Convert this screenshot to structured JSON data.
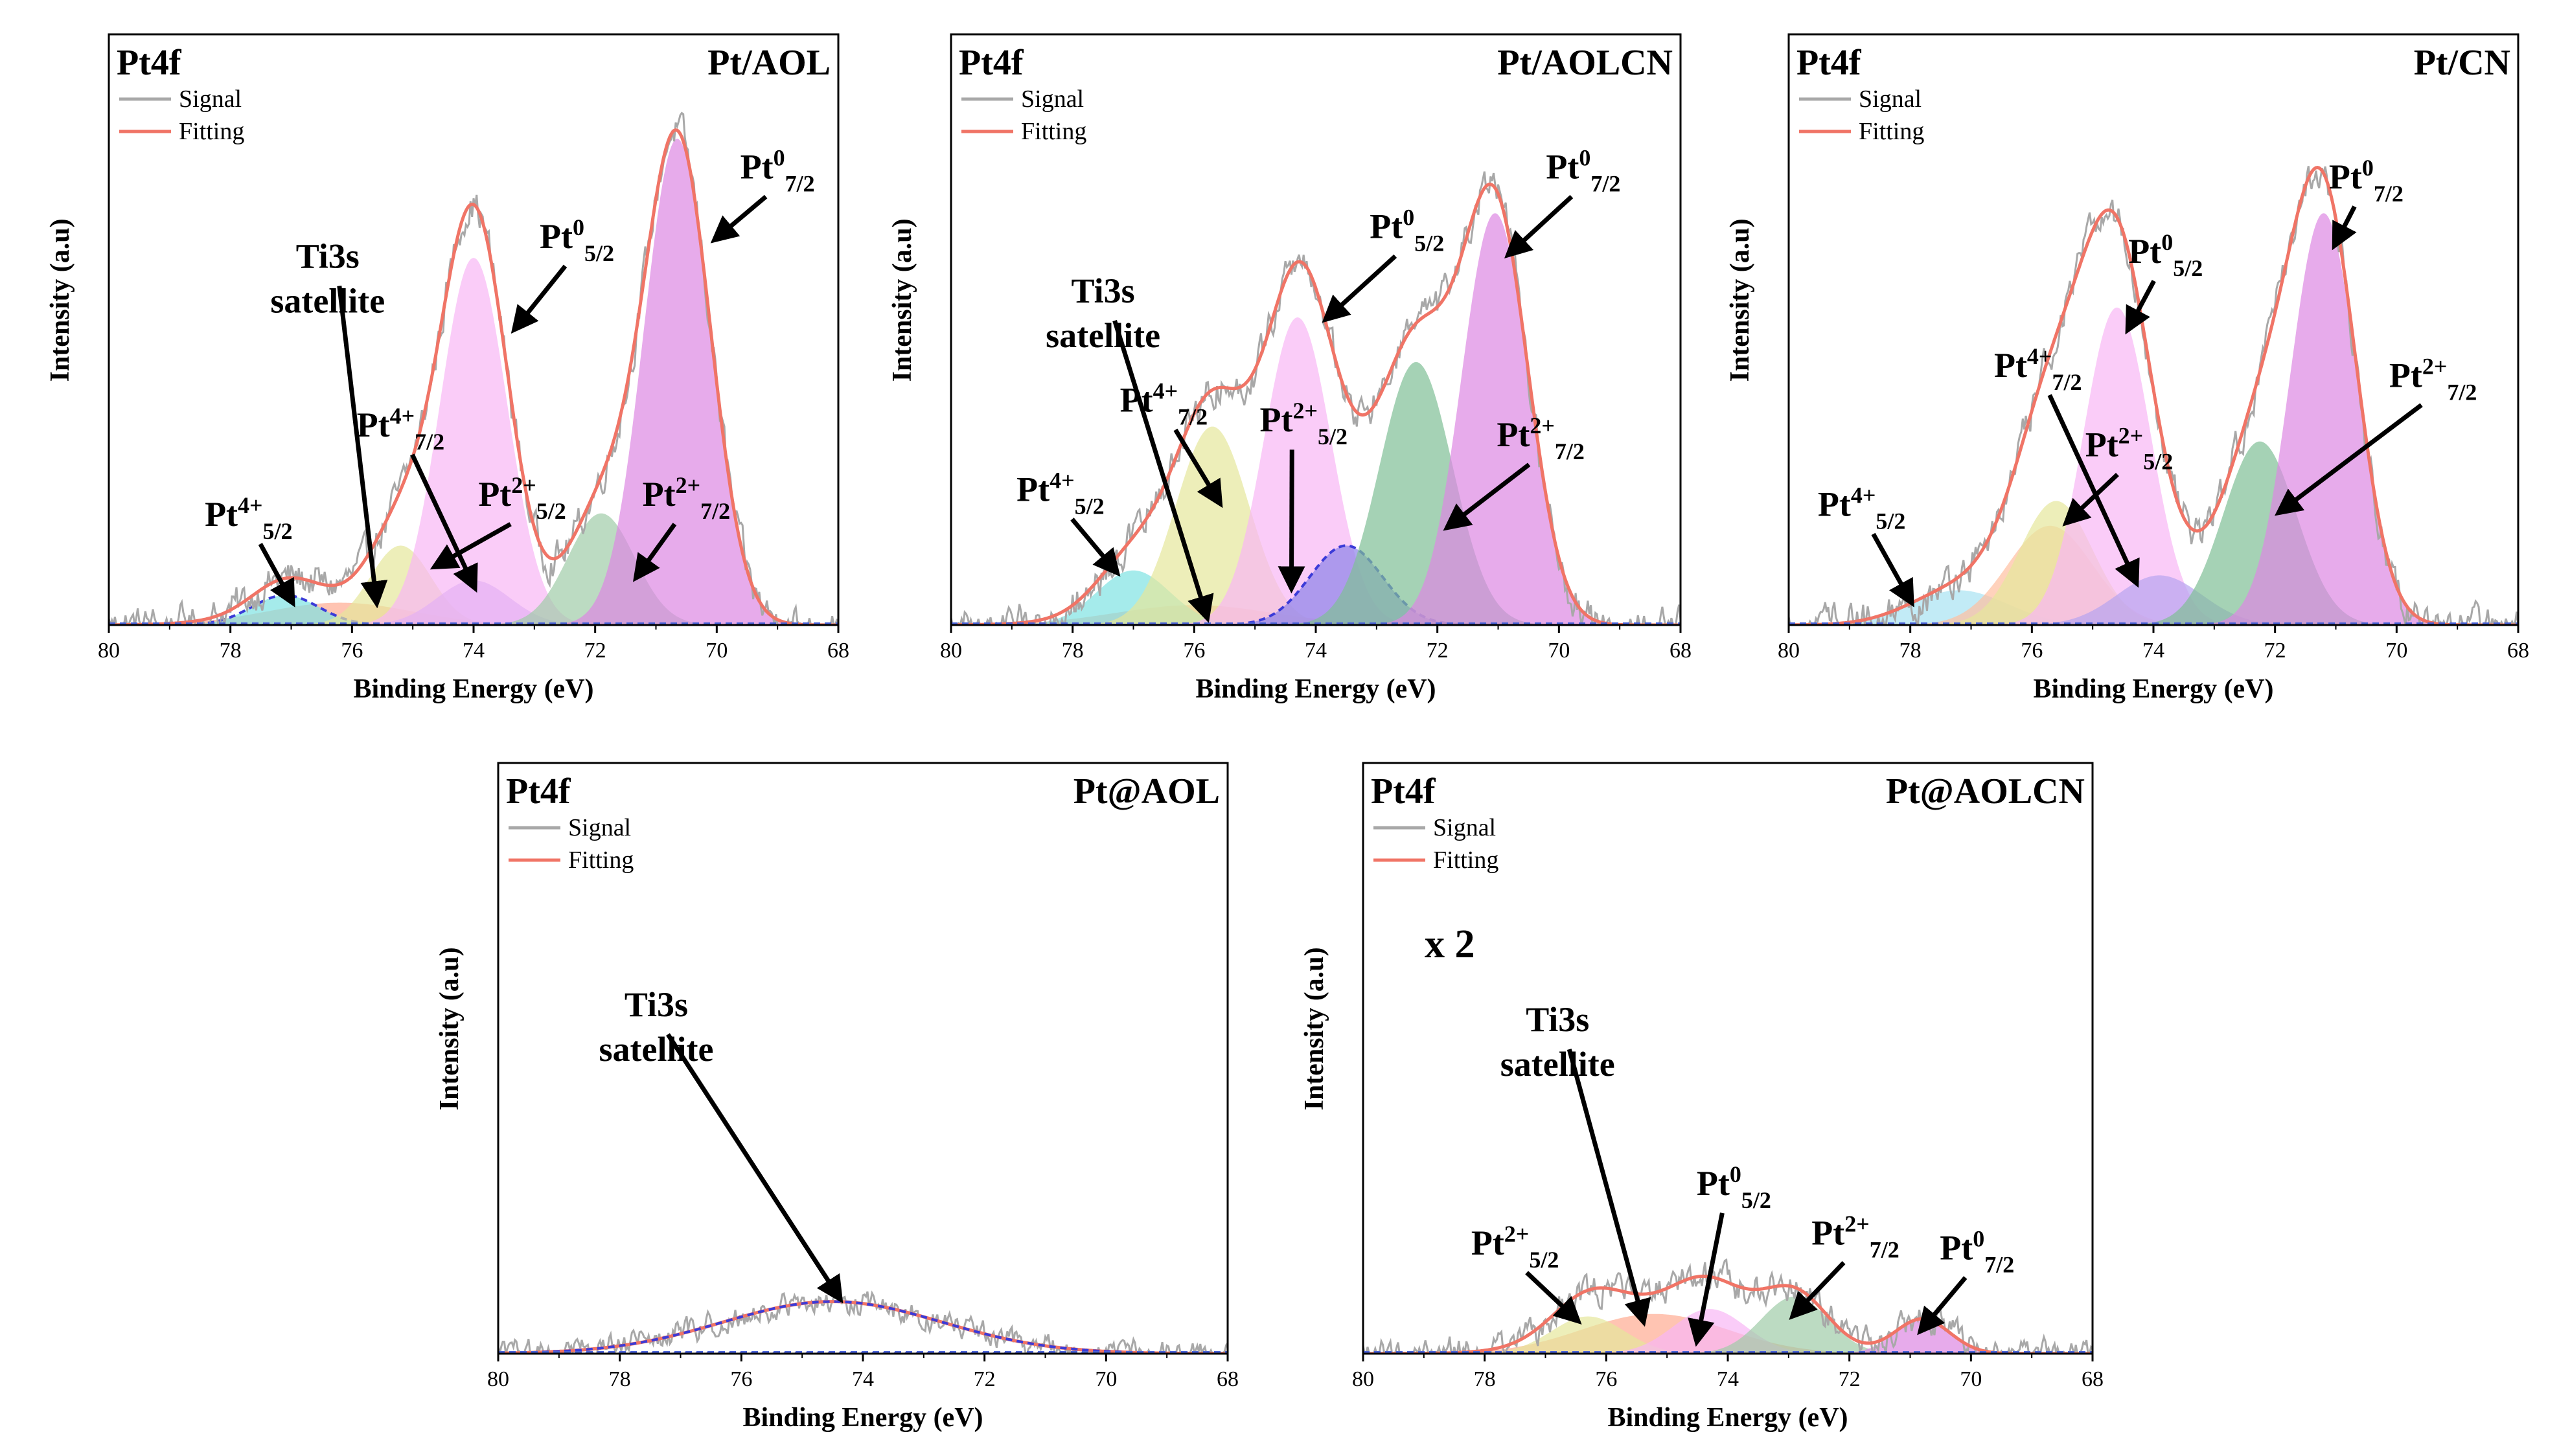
{
  "figure": {
    "caption": ""
  },
  "chart_data": [
    {
      "type": "area",
      "title": "Pt/AOL",
      "corner_label": "Pt4f",
      "xlabel": "Binding Energy (eV)",
      "ylabel": "Intensity (a.u)",
      "xlim": [
        80,
        68
      ],
      "ylim": [
        0,
        1
      ],
      "x_reversed": true,
      "xticks": [
        80,
        78,
        76,
        74,
        72,
        70,
        68
      ],
      "legend": {
        "entries": [
          "Signal",
          "Fitting"
        ],
        "position": "top-left"
      },
      "signal_noise": 0.03,
      "scale_note": "",
      "series": [
        {
          "name": "Ti3s satellite",
          "center": 76.2,
          "height": 0.045,
          "width": 1.2,
          "color": "#ffab91"
        },
        {
          "name": "Pt4+ 5/2",
          "center": 77.1,
          "height": 0.06,
          "width": 0.55,
          "color": "#7fe3e3",
          "dashed": true
        },
        {
          "name": "Pt4+ 7/2",
          "center": 75.2,
          "height": 0.16,
          "width": 0.5,
          "color": "#e5e79b"
        },
        {
          "name": "Pt2+ 5/2",
          "center": 74.0,
          "height": 0.09,
          "width": 0.6,
          "color": "#b7a4f0"
        },
        {
          "name": "Pt0 5/2",
          "center": 74.0,
          "height": 0.74,
          "width": 0.55,
          "color": "#f8b6f5"
        },
        {
          "name": "Pt2+ 7/2",
          "center": 71.9,
          "height": 0.225,
          "width": 0.55,
          "color": "#9fcca8"
        },
        {
          "name": "Pt0 7/2",
          "center": 70.65,
          "height": 0.98,
          "width": 0.55,
          "color": "#dd88e3"
        }
      ],
      "annotations": [
        {
          "main": "Pt",
          "sup": "4+",
          "sub": "5/2",
          "text_x": 77.7,
          "text_y": 0.2,
          "tip_x": 77.0,
          "tip_y": 0.05
        },
        {
          "main": "Ti3s",
          "sub": "",
          "text_x": 76.4,
          "text_y": 0.72,
          "tip_x": 75.6,
          "tip_y": 0.05
        },
        {
          "main": "satellite",
          "sub": "",
          "text_x": 76.4,
          "text_y": 0.63
        },
        {
          "main": "Pt",
          "sup": "4+",
          "sub": "7/2",
          "text_x": 75.2,
          "text_y": 0.38,
          "tip_x": 74.0,
          "tip_y": 0.08
        },
        {
          "main": "Pt",
          "sup": "2+",
          "sub": "5/2",
          "text_x": 73.2,
          "text_y": 0.24,
          "tip_x": 74.6,
          "tip_y": 0.12
        },
        {
          "main": "Pt",
          "sup": "0",
          "sub": "5/2",
          "text_x": 72.3,
          "text_y": 0.76,
          "tip_x": 73.3,
          "tip_y": 0.6
        },
        {
          "main": "Pt",
          "sup": "2+",
          "sub": "7/2",
          "text_x": 70.5,
          "text_y": 0.24,
          "tip_x": 71.3,
          "tip_y": 0.1
        },
        {
          "main": "Pt",
          "sup": "0",
          "sub": "7/2",
          "text_x": 69.0,
          "text_y": 0.9,
          "tip_x": 70.0,
          "tip_y": 0.78
        }
      ]
    },
    {
      "type": "area",
      "title": "Pt/AOLCN",
      "corner_label": "Pt4f",
      "xlabel": "Binding Energy (eV)",
      "ylabel": "Intensity (a.u)",
      "xlim": [
        80,
        68
      ],
      "ylim": [
        0,
        1
      ],
      "x_reversed": true,
      "xticks": [
        80,
        78,
        76,
        74,
        72,
        70,
        68
      ],
      "legend": {
        "entries": [
          "Signal",
          "Fitting"
        ],
        "position": "top-left"
      },
      "signal_noise": 0.03,
      "scale_note": "",
      "series": [
        {
          "name": "Ti3s satellite",
          "center": 76.0,
          "height": 0.04,
          "width": 1.3,
          "color": "#ffab91"
        },
        {
          "name": "Pt4+ 5/2",
          "center": 77.0,
          "height": 0.11,
          "width": 0.6,
          "color": "#7fe3e3"
        },
        {
          "name": "Pt4+ 7/2",
          "center": 75.7,
          "height": 0.4,
          "width": 0.6,
          "color": "#e5e79b"
        },
        {
          "name": "Pt0 5/2",
          "center": 74.3,
          "height": 0.62,
          "width": 0.55,
          "color": "#f8b6f5"
        },
        {
          "name": "Pt2+ 5/2",
          "center": 73.5,
          "height": 0.16,
          "width": 0.6,
          "color": "#8c83e8",
          "dashed": true
        },
        {
          "name": "Pt2+ 7/2",
          "center": 72.35,
          "height": 0.53,
          "width": 0.6,
          "color": "#7fbf96"
        },
        {
          "name": "Pt0 7/2",
          "center": 71.05,
          "height": 0.83,
          "width": 0.55,
          "color": "#dd88e3"
        }
      ],
      "annotations": [
        {
          "main": "Pt",
          "sup": "4+",
          "sub": "5/2",
          "text_x": 78.2,
          "text_y": 0.25,
          "tip_x": 77.3,
          "tip_y": 0.11
        },
        {
          "main": "Ti3s",
          "sub": "",
          "text_x": 77.5,
          "text_y": 0.65,
          "tip_x": 75.8,
          "tip_y": 0.02
        },
        {
          "main": "satellite",
          "sub": "",
          "text_x": 77.5,
          "text_y": 0.56
        },
        {
          "main": "Pt",
          "sup": "4+",
          "sub": "7/2",
          "text_x": 76.5,
          "text_y": 0.43,
          "tip_x": 75.6,
          "tip_y": 0.25
        },
        {
          "main": "Pt",
          "sup": "2+",
          "sub": "5/2",
          "text_x": 74.2,
          "text_y": 0.39,
          "tip_x": 74.4,
          "tip_y": 0.08
        },
        {
          "main": "Pt",
          "sup": "0",
          "sub": "5/2",
          "text_x": 72.5,
          "text_y": 0.78,
          "tip_x": 73.8,
          "tip_y": 0.62
        },
        {
          "main": "Pt",
          "sup": "2+",
          "sub": "7/2",
          "text_x": 70.3,
          "text_y": 0.36,
          "tip_x": 71.8,
          "tip_y": 0.2
        },
        {
          "main": "Pt",
          "sup": "0",
          "sub": "7/2",
          "text_x": 69.6,
          "text_y": 0.9,
          "tip_x": 70.8,
          "tip_y": 0.75
        }
      ]
    },
    {
      "type": "area",
      "title": "Pt/CN",
      "corner_label": "Pt4f",
      "xlabel": "Binding Energy (eV)",
      "ylabel": "Intensity (a.u)",
      "xlim": [
        80,
        68
      ],
      "ylim": [
        0,
        1
      ],
      "x_reversed": true,
      "xticks": [
        80,
        78,
        76,
        74,
        72,
        70,
        68
      ],
      "legend": {
        "entries": [
          "Signal",
          "Fitting"
        ],
        "position": "top-left"
      },
      "signal_noise": 0.03,
      "scale_note": "",
      "series": [
        {
          "name": "Pt4+ 5/2",
          "center": 77.2,
          "height": 0.07,
          "width": 0.8,
          "color": "#a8e3f2"
        },
        {
          "name": "Ti3s satellite",
          "center": 75.7,
          "height": 0.2,
          "width": 0.7,
          "color": "#ffbfa0"
        },
        {
          "name": "Pt4+ 7/2",
          "center": 75.6,
          "height": 0.25,
          "width": 0.6,
          "color": "#e5e79b"
        },
        {
          "name": "Pt0 5/2",
          "center": 74.6,
          "height": 0.64,
          "width": 0.55,
          "color": "#f8b6f5"
        },
        {
          "name": "Pt2+ 5/2",
          "center": 73.9,
          "height": 0.1,
          "width": 0.7,
          "color": "#b7a4f0"
        },
        {
          "name": "Pt2+ 7/2",
          "center": 72.25,
          "height": 0.37,
          "width": 0.6,
          "color": "#7fbf96"
        },
        {
          "name": "Pt0 7/2",
          "center": 71.2,
          "height": 0.83,
          "width": 0.55,
          "color": "#dd88e3"
        }
      ],
      "annotations": [
        {
          "main": "Pt",
          "sup": "4+",
          "sub": "5/2",
          "text_x": 78.8,
          "text_y": 0.22,
          "tip_x": 78.0,
          "tip_y": 0.05
        },
        {
          "main": "Pt",
          "sup": "4+",
          "sub": "7/2",
          "text_x": 75.9,
          "text_y": 0.5,
          "tip_x": 74.3,
          "tip_y": 0.09
        },
        {
          "main": "Pt",
          "sup": "2+",
          "sub": "5/2",
          "text_x": 74.4,
          "text_y": 0.34,
          "tip_x": 75.4,
          "tip_y": 0.21
        },
        {
          "main": "Pt",
          "sup": "0",
          "sub": "5/2",
          "text_x": 73.8,
          "text_y": 0.73,
          "tip_x": 74.4,
          "tip_y": 0.6
        },
        {
          "main": "Pt",
          "sup": "2+",
          "sub": "7/2",
          "text_x": 69.4,
          "text_y": 0.48,
          "tip_x": 71.9,
          "tip_y": 0.23
        },
        {
          "main": "Pt",
          "sup": "0",
          "sub": "7/2",
          "text_x": 70.5,
          "text_y": 0.88,
          "tip_x": 71.0,
          "tip_y": 0.77
        }
      ]
    },
    {
      "type": "area",
      "title": "Pt@AOL",
      "corner_label": "Pt4f",
      "xlabel": "Binding Energy (eV)",
      "ylabel": "Intensity (a.u)",
      "xlim": [
        80,
        68
      ],
      "ylim": [
        0,
        1
      ],
      "x_reversed": true,
      "xticks": [
        80,
        78,
        76,
        74,
        72,
        70,
        68
      ],
      "legend": {
        "entries": [
          "Signal",
          "Fitting"
        ],
        "position": "top-left"
      },
      "signal_noise": 0.02,
      "scale_note": "",
      "series": [
        {
          "name": "Ti3s satellite",
          "center": 74.5,
          "height": 0.105,
          "width": 1.8,
          "color": "#8a6fd8",
          "dashed": true,
          "nofill": true
        }
      ],
      "annotations": [
        {
          "main": "Ti3s",
          "sub": "",
          "text_x": 77.4,
          "text_y": 0.68,
          "tip_x": 74.4,
          "tip_y": 0.115
        },
        {
          "main": "satellite",
          "sub": "",
          "text_x": 77.4,
          "text_y": 0.59
        }
      ]
    },
    {
      "type": "area",
      "title": "Pt@AOLCN",
      "corner_label": "Pt4f",
      "xlabel": "Binding Energy (eV)",
      "ylabel": "Intensity (a.u)",
      "xlim": [
        80,
        68
      ],
      "ylim": [
        0,
        1
      ],
      "x_reversed": true,
      "xticks": [
        80,
        78,
        76,
        74,
        72,
        70,
        68
      ],
      "legend": {
        "entries": [
          "Signal",
          "Fitting"
        ],
        "position": "top-left"
      },
      "signal_noise": 0.025,
      "scale_note": "x 2",
      "series": [
        {
          "name": "Ti3s satellite",
          "center": 75.2,
          "height": 0.08,
          "width": 1.2,
          "color": "#ffab91"
        },
        {
          "name": "Pt2+ 5/2",
          "center": 76.3,
          "height": 0.075,
          "width": 0.6,
          "color": "#e5e79b"
        },
        {
          "name": "Pt0 5/2",
          "center": 74.3,
          "height": 0.09,
          "width": 0.6,
          "color": "#f8b6f5"
        },
        {
          "name": "Pt2+ 7/2",
          "center": 72.9,
          "height": 0.115,
          "width": 0.55,
          "color": "#9fcca8"
        },
        {
          "name": "Pt0 7/2",
          "center": 70.8,
          "height": 0.07,
          "width": 0.45,
          "color": "#dd88e3"
        }
      ],
      "annotations": [
        {
          "main": "Pt",
          "sup": "2+",
          "sub": "5/2",
          "text_x": 77.5,
          "text_y": 0.2,
          "tip_x": 76.5,
          "tip_y": 0.07
        },
        {
          "main": "Ti3s",
          "sub": "",
          "text_x": 76.8,
          "text_y": 0.65,
          "tip_x": 75.4,
          "tip_y": 0.07
        },
        {
          "main": "satellite",
          "sub": "",
          "text_x": 76.8,
          "text_y": 0.56
        },
        {
          "main": "Pt",
          "sup": "0",
          "sub": "5/2",
          "text_x": 73.9,
          "text_y": 0.32,
          "tip_x": 74.5,
          "tip_y": 0.03
        },
        {
          "main": "Pt",
          "sup": "2+",
          "sub": "7/2",
          "text_x": 71.9,
          "text_y": 0.22,
          "tip_x": 72.9,
          "tip_y": 0.08
        },
        {
          "main": "Pt",
          "sup": "0",
          "sub": "7/2",
          "text_x": 69.9,
          "text_y": 0.19,
          "tip_x": 70.8,
          "tip_y": 0.05
        }
      ]
    }
  ]
}
